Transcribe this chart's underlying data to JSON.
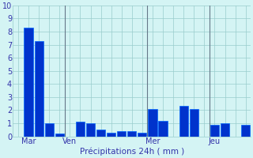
{
  "values": [
    0,
    8.3,
    7.3,
    1.0,
    0.2,
    0,
    1.1,
    1.0,
    0.5,
    0.3,
    0.4,
    0.4,
    0.3,
    2.1,
    1.2,
    0,
    2.3,
    2.1,
    0,
    0.9,
    1.0,
    0,
    0.9
  ],
  "day_labels": [
    "Mar",
    "Ven",
    "Mer",
    "Jeu"
  ],
  "day_positions": [
    1,
    5,
    13,
    19
  ],
  "xlabel": "Précipitations 24h ( mm )",
  "ylim": [
    0,
    10
  ],
  "yticks": [
    0,
    1,
    2,
    3,
    4,
    5,
    6,
    7,
    8,
    9,
    10
  ],
  "bar_color": "#0033cc",
  "bar_edge_color": "#0066ff",
  "bg_color": "#d4f4f4",
  "grid_color": "#99cccc",
  "vline_color": "#667788",
  "vline_positions": [
    4.5,
    12.5,
    18.5
  ],
  "xlabel_color": "#3333aa",
  "tick_color": "#3333aa",
  "bar_width": 0.85,
  "figsize": [
    3.2,
    2.0
  ],
  "dpi": 100
}
